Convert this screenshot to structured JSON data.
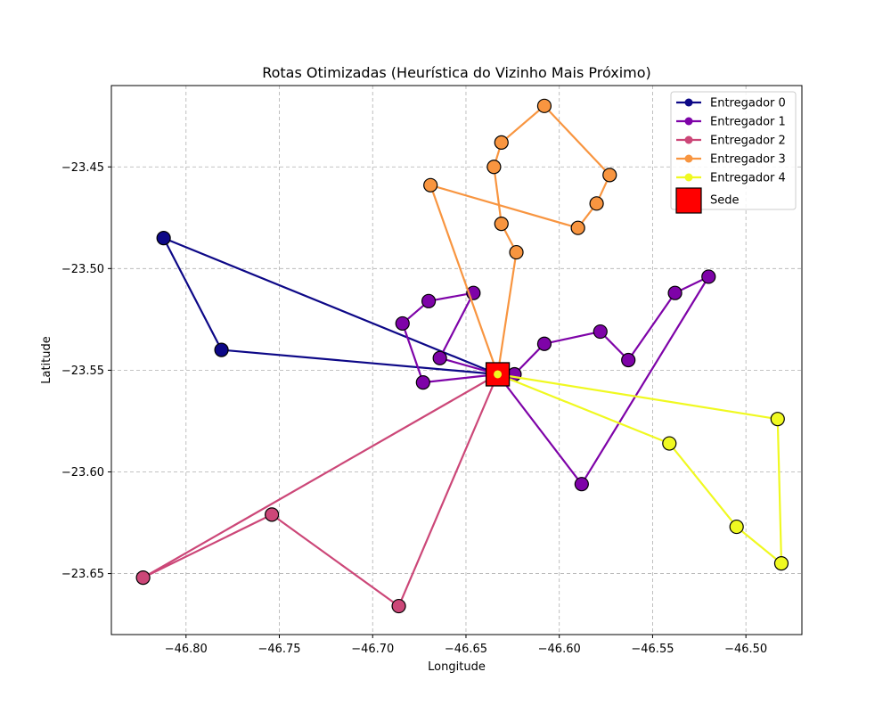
{
  "chart_data": {
    "type": "line",
    "title": "Rotas Otimizadas (Heurística do Vizinho Mais Próximo)",
    "xlabel": "Longitude",
    "ylabel": "Latitude",
    "xlim": [
      -46.84,
      -46.47
    ],
    "ylim": [
      -23.68,
      -23.41
    ],
    "xticks": [
      -46.8,
      -46.75,
      -46.7,
      -46.65,
      -46.6,
      -46.55,
      -46.5
    ],
    "xtick_labels": [
      "−46.80",
      "−46.75",
      "−46.70",
      "−46.65",
      "−46.60",
      "−46.55",
      "−46.50"
    ],
    "yticks": [
      -23.45,
      -23.5,
      -23.55,
      -23.6,
      -23.65
    ],
    "ytick_labels": [
      "−23.45",
      "−23.50",
      "−23.55",
      "−23.60",
      "−23.65"
    ],
    "grid": true,
    "legend_position": "top-right",
    "depot": {
      "name": "Sede",
      "x": -46.633,
      "y": -23.552,
      "color": "#ff0000"
    },
    "series": [
      {
        "name": "Entregador 0",
        "color": "#0d0887",
        "x": [
          -46.633,
          -46.812,
          -46.781,
          -46.633
        ],
        "y": [
          -23.552,
          -23.485,
          -23.54,
          -23.552
        ]
      },
      {
        "name": "Entregador 1",
        "color": "#7e03a8",
        "x": [
          -46.633,
          -46.624,
          -46.608,
          -46.578,
          -46.563,
          -46.538,
          -46.52,
          -46.588,
          -46.633,
          -46.673,
          -46.684,
          -46.67,
          -46.646,
          -46.664,
          -46.633
        ],
        "y": [
          -23.552,
          -23.552,
          -23.537,
          -23.531,
          -23.545,
          -23.512,
          -23.504,
          -23.606,
          -23.552,
          -23.556,
          -23.527,
          -23.516,
          -23.512,
          -23.544,
          -23.552
        ]
      },
      {
        "name": "Entregador 2",
        "color": "#cc4778",
        "x": [
          -46.633,
          -46.686,
          -46.754,
          -46.823,
          -46.633
        ],
        "y": [
          -23.552,
          -23.666,
          -23.621,
          -23.652,
          -23.552
        ]
      },
      {
        "name": "Entregador 3",
        "color": "#f89540",
        "x": [
          -46.633,
          -46.623,
          -46.631,
          -46.635,
          -46.631,
          -46.608,
          -46.573,
          -46.58,
          -46.59,
          -46.669,
          -46.633
        ],
        "y": [
          -23.552,
          -23.492,
          -23.478,
          -23.45,
          -23.438,
          -23.42,
          -23.454,
          -23.468,
          -23.48,
          -23.459,
          -23.552
        ]
      },
      {
        "name": "Entregador 4",
        "color": "#f0f921",
        "x": [
          -46.633,
          -46.541,
          -46.505,
          -46.481,
          -46.483,
          -46.633
        ],
        "y": [
          -23.552,
          -23.586,
          -23.627,
          -23.645,
          -23.574,
          -23.552
        ]
      }
    ]
  }
}
